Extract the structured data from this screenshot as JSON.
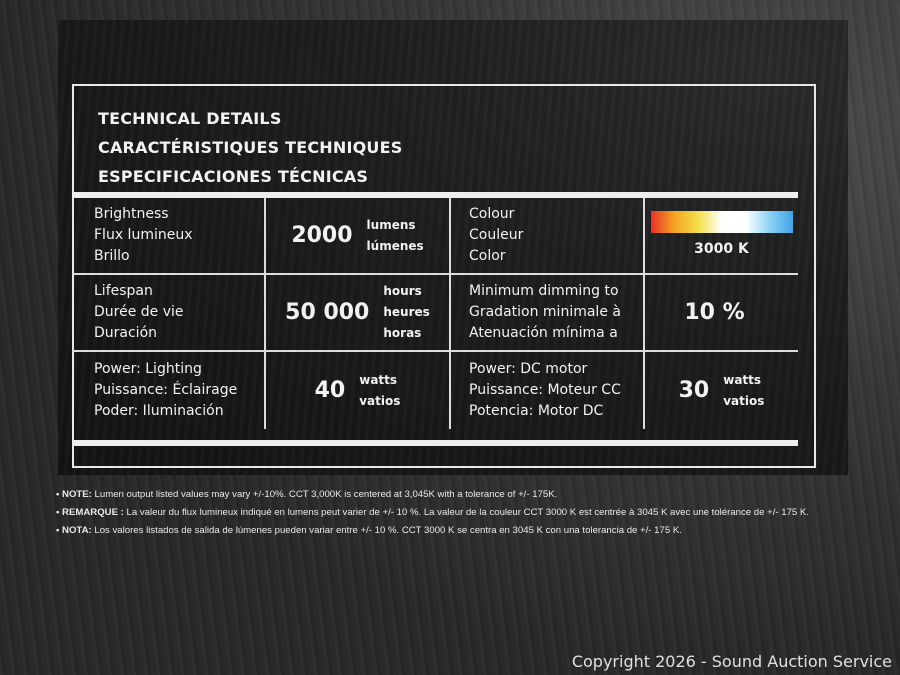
{
  "titles": [
    "TECHNICAL DETAILS",
    "CARACTÉRISTIQUES TECHNIQUES",
    "ESPECIFICACIONES TÉCNICAS"
  ],
  "rows": [
    {
      "label": [
        "Brightness",
        "Flux lumineux",
        "Brillo"
      ],
      "value": "2000",
      "units": [
        "lumens",
        "lúmenes"
      ],
      "label2": [
        "Colour",
        "Couleur",
        "Color"
      ],
      "value2": "3000 K",
      "units2": []
    },
    {
      "label": [
        "Lifespan",
        "Durée de vie",
        "Duración"
      ],
      "value": "50 000",
      "units": [
        "hours",
        "heures",
        "horas"
      ],
      "label2": [
        "Minimum dimming to",
        "Gradation minimale à",
        "Atenuación mínima a"
      ],
      "value2": "10 %",
      "units2": []
    },
    {
      "label": [
        "Power: Lighting",
        "Puissance: Éclairage",
        "Poder: Iluminación"
      ],
      "value": "40",
      "units": [
        "watts",
        "vatios"
      ],
      "label2": [
        "Power: DC motor",
        "Puissance: Moteur CC",
        "Potencia: Motor DC"
      ],
      "value2": "30",
      "units2": [
        "watts",
        "vatios"
      ]
    }
  ],
  "notes": [
    {
      "prefix": "NOTE:",
      "text": " Lumen output listed values may vary +/-10%. CCT 3,000K is centered at 3,045K with a tolerance of +/- 175K."
    },
    {
      "prefix": "REMARQUE :",
      "text": " La valeur du flux lumineux indiqué en lumens peut varier de +/- 10 %. La valeur de la couleur CCT 3000 K est centrée à 3045 K avec une tolérance de +/- 175 K."
    },
    {
      "prefix": "NOTA:",
      "text": " Los valores listados de salida de lúmenes pueden variar entre +/- 10 %. CCT 3000 K se centra en 3045 K con una tolerancia de +/- 175 K."
    }
  ],
  "watermark": "Copyright 2026 - Sound Auction Service"
}
